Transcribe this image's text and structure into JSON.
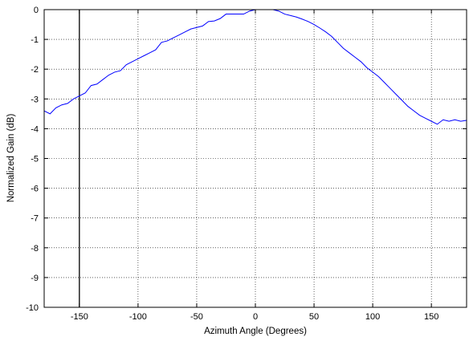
{
  "chart_data": {
    "type": "line",
    "title": "",
    "xlabel": "Azimuth Angle (Degrees)",
    "ylabel": "Normalized Gain (dB)",
    "xlim": [
      -180,
      180
    ],
    "ylim": [
      -10,
      0
    ],
    "xticks": [
      -150,
      -100,
      -50,
      0,
      50,
      100,
      150
    ],
    "yticks": [
      -10,
      -9,
      -8,
      -7,
      -6,
      -5,
      -4,
      -3,
      -2,
      -1,
      0
    ],
    "grid": true,
    "grid_style": "dotted",
    "line_color": "#0000ff",
    "marker_line": {
      "x": -150,
      "color": "#000000"
    },
    "series": [
      {
        "x": [
          -180,
          -175,
          -170,
          -165,
          -160,
          -155,
          -150,
          -145,
          -140,
          -135,
          -130,
          -125,
          -120,
          -115,
          -110,
          -105,
          -100,
          -95,
          -90,
          -85,
          -80,
          -75,
          -70,
          -65,
          -60,
          -55,
          -50,
          -45,
          -40,
          -35,
          -30,
          -25,
          -20,
          -15,
          -10,
          -5,
          0,
          5,
          10,
          15,
          20,
          25,
          30,
          35,
          40,
          45,
          50,
          55,
          60,
          65,
          70,
          75,
          80,
          85,
          90,
          95,
          100,
          105,
          110,
          115,
          120,
          125,
          130,
          135,
          140,
          145,
          150,
          155,
          160,
          165,
          170,
          175,
          180
        ],
        "y": [
          -3.4,
          -3.5,
          -3.3,
          -3.2,
          -3.15,
          -3.0,
          -2.9,
          -2.8,
          -2.55,
          -2.5,
          -2.35,
          -2.2,
          -2.1,
          -2.05,
          -1.85,
          -1.75,
          -1.65,
          -1.55,
          -1.45,
          -1.35,
          -1.1,
          -1.05,
          -0.95,
          -0.85,
          -0.75,
          -0.65,
          -0.6,
          -0.55,
          -0.4,
          -0.38,
          -0.3,
          -0.15,
          -0.15,
          -0.15,
          -0.15,
          -0.05,
          0.0,
          0.0,
          0.0,
          0.0,
          -0.05,
          -0.15,
          -0.2,
          -0.25,
          -0.32,
          -0.4,
          -0.5,
          -0.62,
          -0.75,
          -0.9,
          -1.1,
          -1.3,
          -1.45,
          -1.6,
          -1.75,
          -1.95,
          -2.1,
          -2.25,
          -2.45,
          -2.65,
          -2.85,
          -3.05,
          -3.25,
          -3.4,
          -3.55,
          -3.65,
          -3.75,
          -3.85,
          -3.7,
          -3.75,
          -3.7,
          -3.75,
          -3.72
        ]
      }
    ]
  }
}
